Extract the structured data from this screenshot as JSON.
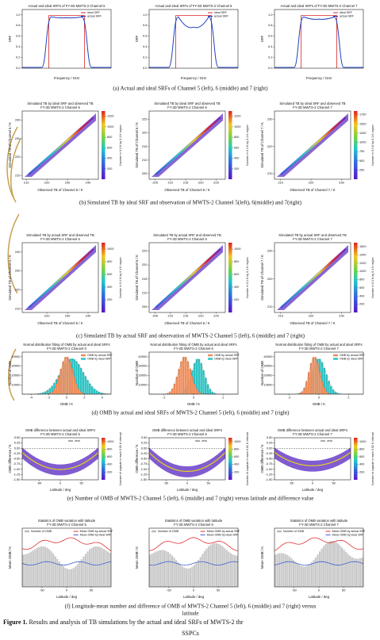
{
  "rows": [
    {
      "type": "srf",
      "caption": [
        "(a) Actual and ideal SRFs of Channel 5 (left), 6 (middle) and 7 (right)"
      ],
      "legend": [
        {
          "name": "ideal SRF",
          "color": "#d62728"
        },
        {
          "name": "actual SRF",
          "color": "#1f3fbf"
        }
      ],
      "ylim": [
        0,
        1.1
      ],
      "yticks": [
        {
          "value": 0,
          "label": "0.0"
        },
        {
          "value": 0.2,
          "label": "0.2"
        },
        {
          "value": 0.4,
          "label": "0.4"
        },
        {
          "value": 0.6,
          "label": "0.6"
        },
        {
          "value": 0.8,
          "label": "0.8"
        },
        {
          "value": 1,
          "label": "1.0"
        }
      ],
      "plots": [
        {
          "title": [
            "Actual and ideal SRFs of FY-3D MWTS-2 Channel 5"
          ],
          "xlabel": "Frequency / GHz",
          "ylabel": "SRF"
        },
        {
          "title": [
            "Actual and ideal SRFs of FY-3D MWTS-2 Channel 6"
          ],
          "xlabel": "Frequency / GHz",
          "ylabel": "SRF"
        },
        {
          "title": [
            "Actual and ideal SRFs of FY-3D MWTS-2 Channel 7"
          ],
          "xlabel": "Frequency / GHz",
          "ylabel": "SRF"
        }
      ]
    },
    {
      "type": "density",
      "caption": [
        "(b) Simulated TB by ideal SRF and observation of MWTS-2 Channel 5(left), 6(middle) and 7(right)"
      ],
      "plots": [
        {
          "title": [
            "Simulated TB by ideal SRF and observed TB",
            "FY-3D MWTS-2 Channel 5"
          ],
          "xlabel": "Observed TB of Channel 5 / K",
          "ylabel": "Simulated TB of Channel 5 / K",
          "cblabel": "Number in 0.1 K by 0.1 K region",
          "xlim": [
            208,
            245
          ],
          "xticks": [
            210,
            220,
            230,
            240
          ],
          "ylim": [
            208,
            245
          ],
          "yticks": [
            210,
            220,
            230,
            240
          ],
          "cblim": [
            0,
            1300
          ],
          "cbticks": [
            200,
            400,
            600,
            800,
            1000,
            1200
          ]
        },
        {
          "title": [
            "Simulated TB by ideal SRF and observed TB",
            "FY-3D MWTS-2 Channel 6"
          ],
          "xlabel": "Observed TB of Channel 6 / K",
          "ylabel": "Simulated TB of Channel 6 / K",
          "cblabel": "Number in 0.1 K by 0.1 K region",
          "xlim": [
            203,
            228
          ],
          "xticks": [
            205,
            210,
            215,
            220,
            225
          ],
          "ylim": [
            203,
            228
          ],
          "yticks": [
            205,
            210,
            215,
            220,
            225
          ],
          "cblim": [
            0,
            1300
          ],
          "cbticks": [
            200,
            400,
            600,
            800,
            1000,
            1200
          ]
        },
        {
          "title": [
            "Simulated TB by ideal SRF and observed TB",
            "FY-3D MWTS-2 Channel 7"
          ],
          "xlabel": "Observed TB of Channel 7 / K",
          "ylabel": "Simulated TB of Channel 7 / K",
          "cblabel": "Number in 0.1 K by 0.1 K region",
          "xlim": [
            208,
            233
          ],
          "xticks": [
            210,
            220,
            230
          ],
          "ylim": [
            208,
            233
          ],
          "yticks": [
            210,
            220,
            230
          ],
          "cblim": [
            0,
            1850
          ],
          "cbticks": [
            250,
            500,
            750,
            1000,
            1250,
            1500,
            1750
          ]
        }
      ]
    },
    {
      "type": "density",
      "caption": [
        "(c) Simulated TB by actual SRF and observation of MWTS-2 Channel 5 (left), 6 (middle) and 7 (right)"
      ],
      "plots": [
        {
          "title": [
            "Simulated TB by actual SRF and observed TB",
            "FY-3D MWTS-2 Channel 5"
          ],
          "xlabel": "Observed TB of Channel 5 / K",
          "ylabel": "Simulated TB of Channel 5 / K",
          "cblabel": "Number in 0.1 K by 0.1 K region",
          "xlim": [
            208,
            245
          ],
          "xticks": [
            220,
            230,
            240
          ],
          "ylim": [
            208,
            245
          ],
          "yticks": [
            210,
            220,
            230,
            240
          ],
          "cblim": [
            0,
            1100
          ],
          "cbticks": [
            200,
            400,
            600,
            800,
            1000
          ]
        },
        {
          "title": [
            "Simulated TB by actual SRF and observed TB",
            "FY-3D MWTS-2 Channel 6"
          ],
          "xlabel": "Observed TB of Channel 6 / K",
          "ylabel": "Simulated TB of Channel 6 / K",
          "cblabel": "Number in 0.1 K by 0.1 K region",
          "xlim": [
            203,
            228
          ],
          "xticks": [
            205,
            210,
            215,
            220,
            225
          ],
          "ylim": [
            203,
            228
          ],
          "yticks": [
            205,
            210,
            215,
            220,
            225
          ],
          "cblim": [
            0,
            1100
          ],
          "cbticks": [
            200,
            400,
            600,
            800,
            1000
          ]
        },
        {
          "title": [
            "Simulated TB by actual SRF and observed TB",
            "FY-3D MWTS-2 Channel 7"
          ],
          "xlabel": "Observed TB of Channel 7 / K",
          "ylabel": "Simulated TB of Channel 7 / K",
          "cblabel": "Number in 0.1 K by 0.1 K region",
          "xlim": [
            208,
            233
          ],
          "xticks": [
            210,
            220,
            230
          ],
          "ylim": [
            208,
            233
          ],
          "yticks": [
            210,
            220,
            230
          ],
          "cblim": [
            0,
            1700
          ],
          "cbticks": [
            200,
            400,
            600,
            800,
            1000,
            1200,
            1400,
            1600
          ]
        }
      ]
    },
    {
      "type": "hist",
      "caption": [
        "(d) OMB by actual and ideal SRFs of MWTS-2 Channel 5 (left), 6 (middle) and 7 (right)"
      ],
      "legend": [
        {
          "name": "OMB by actual SRF",
          "color": "#f08c5a"
        },
        {
          "name": "OMB by ideal SRF",
          "color": "#2cc4c4"
        }
      ],
      "plots": [
        {
          "title": [
            "Normal distribution fitting of OMB by actual and ideal SRFs",
            "FY-3D MWTS-2 Channel 5"
          ],
          "xlabel": "OMB / K",
          "ylabel": "Number of OMB",
          "xlim": [
            -5,
            5
          ],
          "xticks": [
            -4,
            -2,
            0,
            2,
            4
          ],
          "ylim": [
            0,
            45000
          ],
          "yticks": [
            10000,
            20000,
            30000,
            40000
          ]
        },
        {
          "title": [
            "Normal distribution fitting of OMB by actual and ideal SRFs",
            "FY-3D MWTS-2 Channel 6"
          ],
          "xlabel": "OMB / K",
          "ylabel": "Number of OMB",
          "xlim": [
            -3,
            3
          ],
          "xticks": [
            -2,
            0,
            2
          ],
          "ylim": [
            0,
            45000
          ],
          "yticks": [
            10000,
            20000,
            30000,
            40000
          ]
        },
        {
          "title": [
            "Normal distribution fitting of OMB by actual and ideal SRFs",
            "FY-3D MWTS-2 Channel 7"
          ],
          "xlabel": "OMB / K",
          "ylabel": "Number of OMB",
          "xlim": [
            -3,
            3
          ],
          "xticks": [
            -2,
            0,
            2
          ],
          "ylim": [
            0,
            45000
          ],
          "yticks": [
            10000,
            20000,
            30000,
            40000
          ]
        }
      ]
    },
    {
      "type": "latdensity",
      "caption": [
        "(e) Number of OMB of MWTS-2 Channel 5 (left), 6 (middle) and 7 (right) versus latitude and difference value"
      ],
      "legend": [
        {
          "name": "zero",
          "color": "#555555"
        }
      ],
      "xlim": [
        -90,
        90
      ],
      "xticks": [
        -50,
        0,
        50
      ],
      "ylim": [
        -1.5,
        0.5
      ],
      "yticks": [
        {
          "value": -1.5,
          "label": "-1.50"
        },
        {
          "value": -1.25,
          "label": "-1.25"
        },
        {
          "value": -1,
          "label": "-1.00"
        },
        {
          "value": -0.75,
          "label": "-0.75"
        },
        {
          "value": -0.5,
          "label": "-0.50"
        },
        {
          "value": -0.25,
          "label": "-0.25"
        },
        {
          "value": 0,
          "label": "0.00"
        },
        {
          "value": 0.25,
          "label": "0.25"
        },
        {
          "value": 0.5,
          "label": "0.50"
        }
      ],
      "cblim": [
        0,
        1100
      ],
      "cbticks": [
        200,
        400,
        600,
        800,
        1000
      ],
      "plots": [
        {
          "title": [
            "OMB difference between actual and ideal SRFs",
            "FY-3D MWTS-2 Channel 5"
          ],
          "xlabel": "Latitude / deg",
          "ylabel": "OMB difference / K",
          "cblabel": "Number of capsule in each 0.01 K interval"
        },
        {
          "title": [
            "OMB difference between actual and ideal SRFs",
            "FY-3D MWTS-2 Channel 6"
          ],
          "xlabel": "Latitude / deg",
          "ylabel": "OMB difference / K",
          "cblabel": "Number of capsule in each 0.01 K interval"
        },
        {
          "title": [
            "OMB difference between actual and ideal SRFs",
            "FY-3D MWTS-2 Channel 7"
          ],
          "xlabel": "Latitude / deg",
          "ylabel": "OMB difference / K",
          "cblabel": "Number of capsule in each 0.01 K interval"
        }
      ]
    },
    {
      "type": "latstats",
      "caption": [
        "(f) Longitude-mean number and difference of OMB of MWTS-2 Channel 5 (left), 6 (middle) and 7 (right) versus",
        "latitude"
      ],
      "legend": [
        {
          "name": "Number of OMB",
          "color": "#bbbbbb"
        },
        {
          "name": "Mean OMB by actual SRF",
          "color": "#e03030"
        },
        {
          "name": "Mean OMB by ideal SRF",
          "color": "#4060d0"
        }
      ],
      "xlim": [
        -90,
        90
      ],
      "xticks": [
        -50,
        0,
        50
      ],
      "plots": [
        {
          "title": [
            "Statistics of OMB variation with latitude",
            "FY-3D MWTS-2 Channel 5"
          ],
          "xlabel": "Latitude / deg",
          "ylabel": "Mean OMB / K"
        },
        {
          "title": [
            "Statistics of OMB variation with latitude",
            "FY-3D MWTS-2 Channel 6"
          ],
          "xlabel": "Latitude / deg",
          "ylabel": "Mean OMB / K"
        },
        {
          "title": [
            "Statistics of OMB variation with latitude",
            "FY-3D MWTS-2 Channel 7"
          ],
          "xlabel": "Latitude / deg",
          "ylabel": "Mean OMB / K"
        }
      ]
    }
  ],
  "figure_caption": {
    "label": "Figure 1.",
    "lines": [
      "Results and analysis of TB simulations by the actual and ideal SRFs of MWTS-2 thr",
      "SSPCs"
    ]
  }
}
